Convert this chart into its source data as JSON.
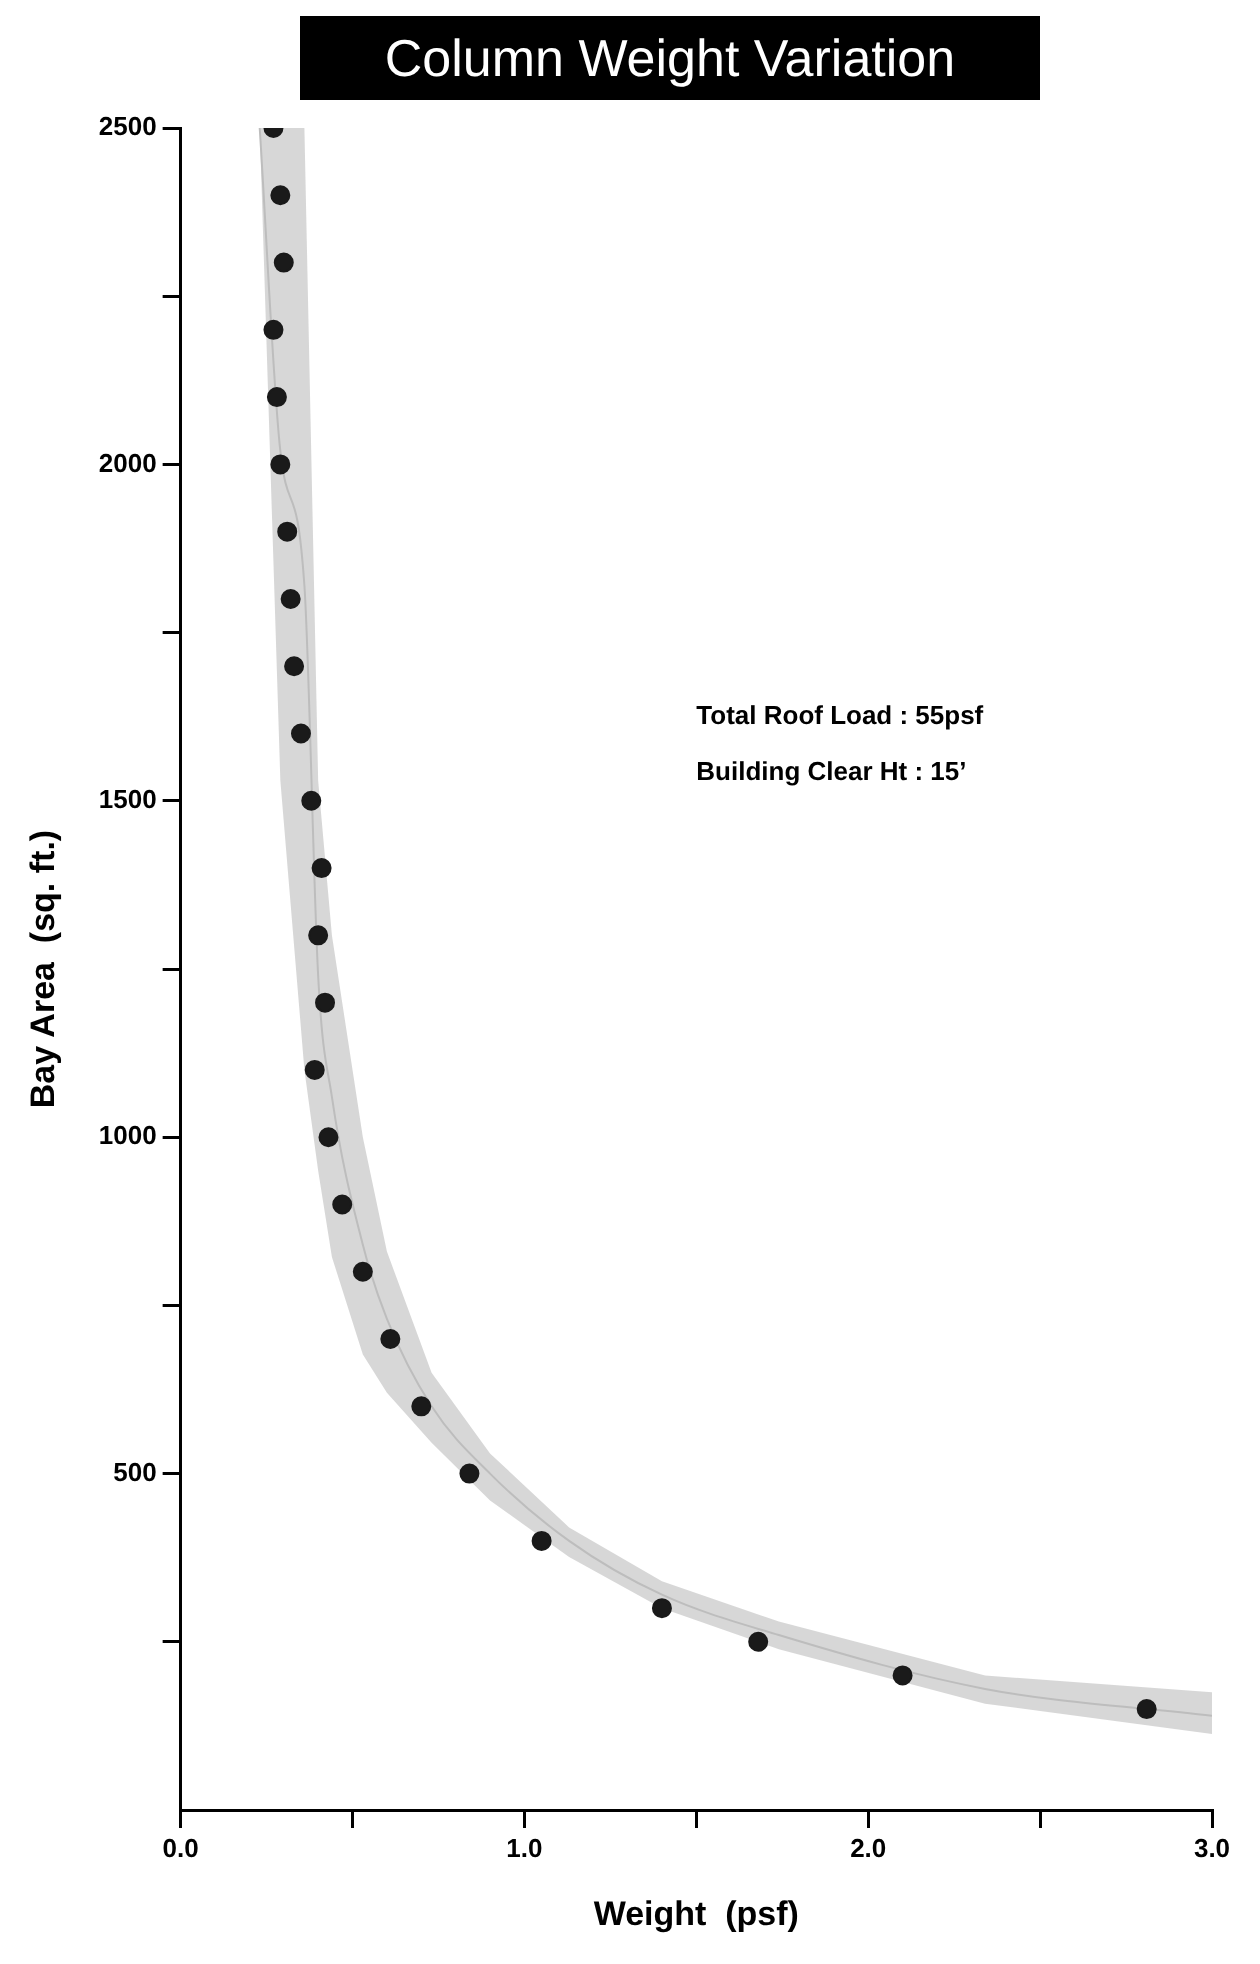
{
  "chart_data": {
    "type": "scatter",
    "title": "Column Weight Variation",
    "xlabel": "Weight  (psf)",
    "ylabel": "Bay Area  (sq. ft.)",
    "annotations": [
      "Total Roof Load : 55psf",
      "Building Clear Ht : 15’"
    ],
    "xlim": [
      0,
      3
    ],
    "ylim": [
      0,
      2500
    ],
    "xticks": [
      {
        "value": 0,
        "label": "0.0"
      },
      {
        "value": 0.5,
        "label": null
      },
      {
        "value": 1,
        "label": "1.0"
      },
      {
        "value": 1.5,
        "label": null
      },
      {
        "value": 2,
        "label": "2.0"
      },
      {
        "value": 2.5,
        "label": null
      },
      {
        "value": 3,
        "label": "3.0"
      }
    ],
    "yticks": [
      {
        "value": 250,
        "label": null
      },
      500,
      {
        "value": 750,
        "label": null
      },
      1000,
      {
        "value": 1250,
        "label": null
      },
      1500,
      {
        "value": 1750,
        "label": null
      },
      2000,
      {
        "value": 2250,
        "label": null
      },
      2500
    ],
    "grid": false,
    "legend": false,
    "series": [
      {
        "type": "line",
        "color": "#bdbdbd",
        "marker": "none",
        "x": [
          0.23,
          0.29,
          0.36,
          0.4,
          0.44,
          0.53,
          0.6,
          0.73,
          0.9,
          1.13,
          1.4,
          1.74,
          2.34,
          3.0
        ],
        "values": [
          2500,
          2020,
          1820,
          1240,
          1060,
          840,
          730,
          600,
          500,
          400,
          320,
          260,
          180,
          140
        ],
        "lower": [
          2500,
          1530,
          1100,
          950,
          822,
          677,
          620,
          546,
          460,
          376,
          300,
          239,
          158,
          113
        ],
        "upper": [
          2500,
          2500,
          2500,
          1530,
          1300,
          1000,
          830,
          650,
          530,
          420,
          340,
          280,
          200,
          175
        ]
      },
      {
        "type": "scatter",
        "color": "#1a1a1a",
        "marker": "circle",
        "x": [
          0.27,
          0.29,
          0.3,
          0.27,
          0.28,
          0.29,
          0.31,
          0.32,
          0.33,
          0.35,
          0.38,
          0.41,
          0.4,
          0.42,
          0.39,
          0.43,
          0.47,
          0.53,
          0.61,
          0.7,
          0.84,
          1.05,
          1.4,
          1.68,
          2.1,
          2.81
        ],
        "values": [
          2500,
          2400,
          2300,
          2200,
          2100,
          2000,
          1900,
          1800,
          1700,
          1600,
          1500,
          1400,
          1300,
          1200,
          1100,
          1000,
          900,
          800,
          700,
          600,
          500,
          400,
          300,
          250,
          200,
          150
        ]
      }
    ]
  }
}
